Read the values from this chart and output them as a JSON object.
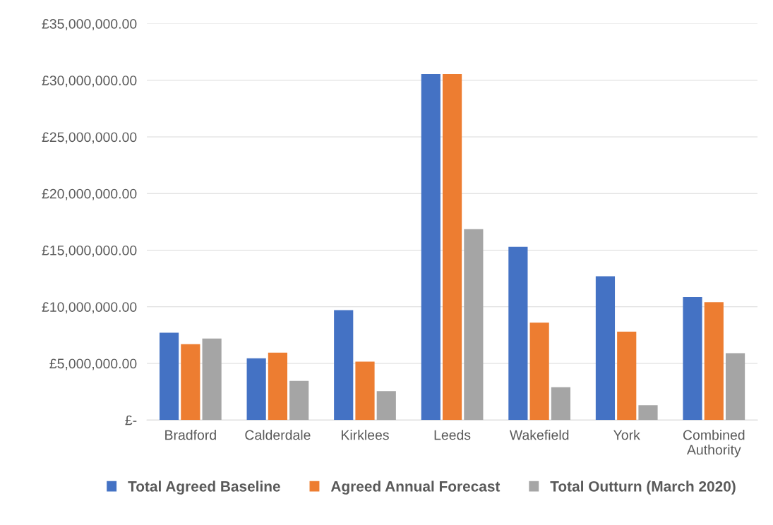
{
  "chart_data": {
    "type": "bar",
    "categories": [
      "Bradford",
      "Calderdale",
      "Kirklees",
      "Leeds",
      "Wakefield",
      "York",
      "Combined\nAuthority"
    ],
    "series": [
      {
        "name": "Total Agreed Baseline",
        "color": "#4472c4",
        "values": [
          7700000,
          5450000,
          9700000,
          30550000,
          15300000,
          12700000,
          10850000
        ]
      },
      {
        "name": "Agreed Annual Forecast",
        "color": "#ed7d31",
        "values": [
          6700000,
          5950000,
          5150000,
          30550000,
          8600000,
          7800000,
          10400000
        ]
      },
      {
        "name": "Total Outturn (March 2020)",
        "color": "#a5a5a5",
        "values": [
          7200000,
          3450000,
          2550000,
          16850000,
          2900000,
          1300000,
          5900000
        ]
      }
    ],
    "ylim": [
      0,
      35000000
    ],
    "yticks": [
      {
        "value": 0,
        "label": "£-"
      },
      {
        "value": 5000000,
        "label": "£5,000,000.00"
      },
      {
        "value": 10000000,
        "label": "£10,000,000.00"
      },
      {
        "value": 15000000,
        "label": "£15,000,000.00"
      },
      {
        "value": 20000000,
        "label": "£20,000,000.00"
      },
      {
        "value": 25000000,
        "label": "£25,000,000.00"
      },
      {
        "value": 30000000,
        "label": "£30,000,000.00"
      },
      {
        "value": 35000000,
        "label": "£35,000,000.00"
      }
    ],
    "grid": "y",
    "legend": "bottom"
  }
}
